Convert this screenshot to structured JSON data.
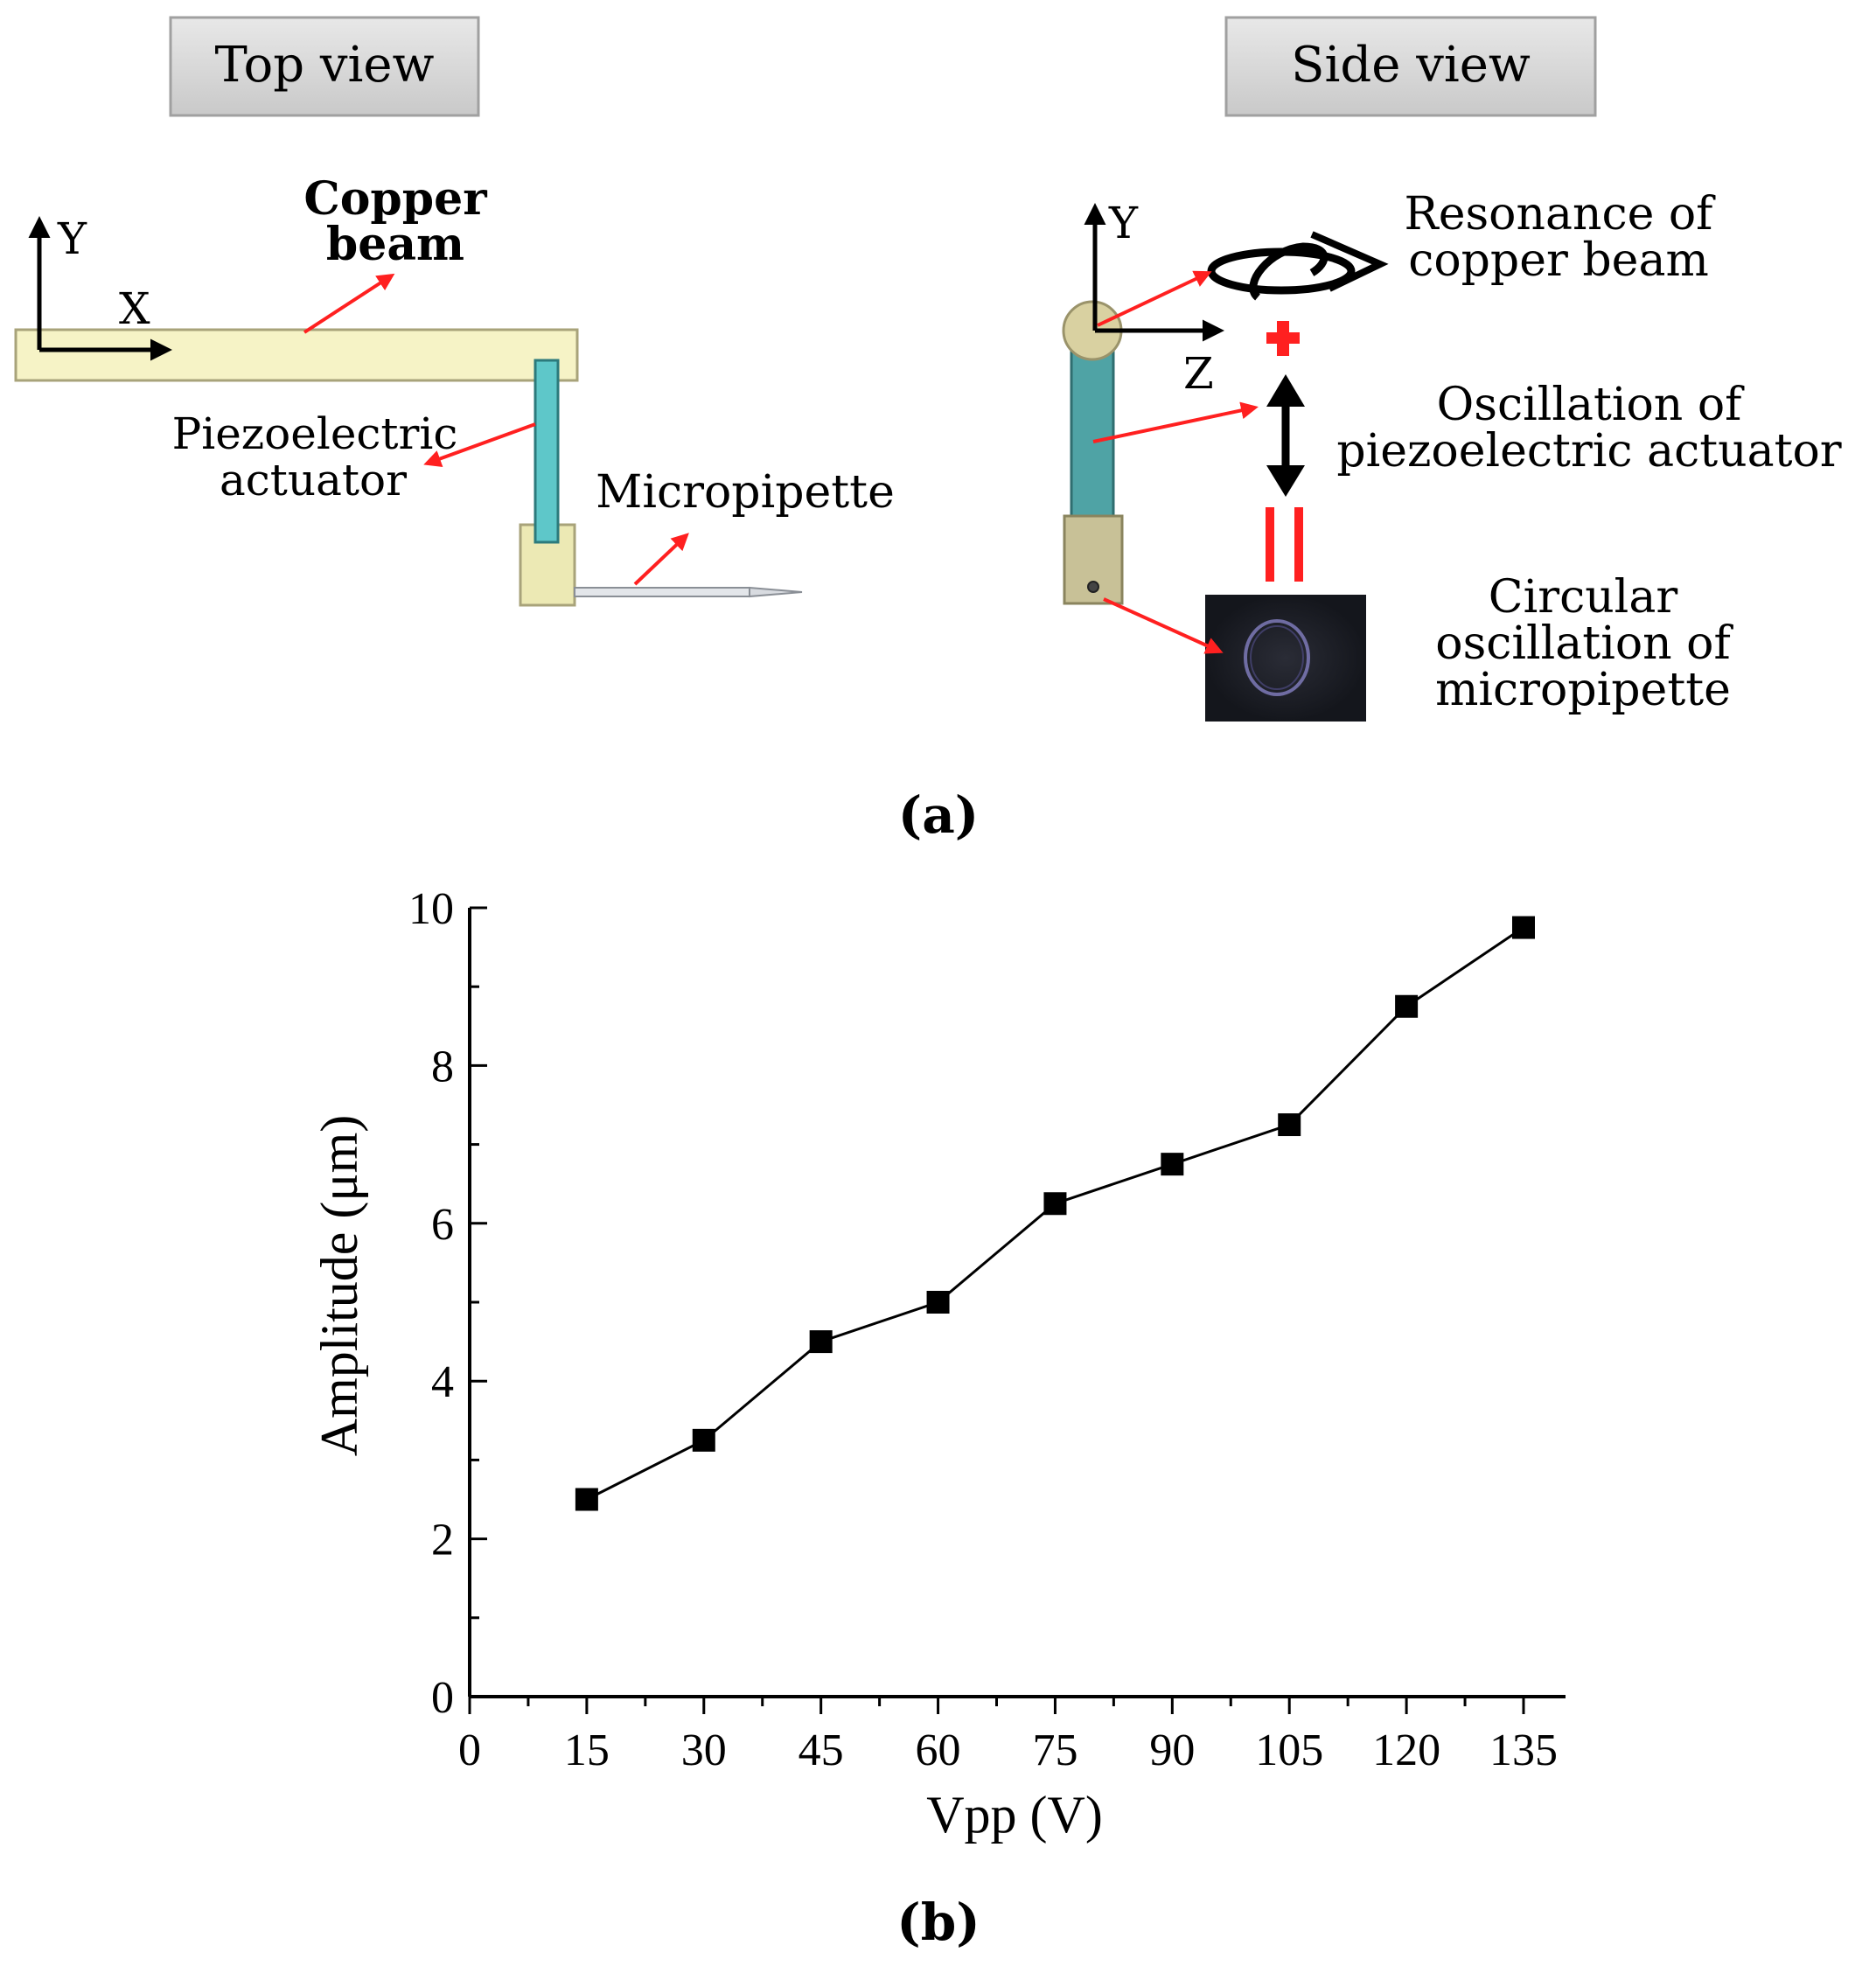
{
  "panel_a": {
    "top_view_label": "Top view",
    "side_view_label": "Side view",
    "axis_y_top": "Y",
    "axis_x_top": "X",
    "copper_beam_line1": "Copper",
    "copper_beam_line2": "beam",
    "piezo_line1": "Piezoelectric",
    "piezo_line2": "actuator",
    "micropipette": "Micropipette",
    "axis_y_side": "Y",
    "axis_z_side": "Z",
    "resonance_line1": "Resonance of",
    "resonance_line2": "copper beam",
    "oscillation_line1": "Oscillation of",
    "oscillation_line2": "piezoelectric actuator",
    "circular_line1": "Circular",
    "circular_line2": "oscillation of",
    "circular_line3": "micropipette",
    "caption": "(a)",
    "colors": {
      "beam": "#f6f3c6",
      "actuator": "#5ec7c9",
      "holder": "#ece9b4",
      "arrow": "#ff2020",
      "side_actuator": "#4fa3a5",
      "side_holder": "#c8c197",
      "button": "#d6d6d6"
    }
  },
  "panel_b": {
    "caption": "(b)"
  },
  "chart_data": {
    "type": "scatter",
    "xlabel": "Vpp (V)",
    "ylabel": "Amplitude (μm)",
    "x": [
      15,
      30,
      45,
      60,
      75,
      90,
      105,
      120,
      135
    ],
    "y": [
      2.5,
      3.25,
      4.5,
      5.0,
      6.25,
      6.75,
      7.25,
      8.75,
      9.75
    ],
    "xlim": [
      0,
      140
    ],
    "ylim": [
      0,
      10
    ],
    "xticks": [
      0,
      15,
      30,
      45,
      60,
      75,
      90,
      105,
      120,
      135
    ],
    "yticks": [
      0,
      2,
      4,
      6,
      8,
      10
    ],
    "grid": false,
    "marker": "square",
    "connected": true
  }
}
